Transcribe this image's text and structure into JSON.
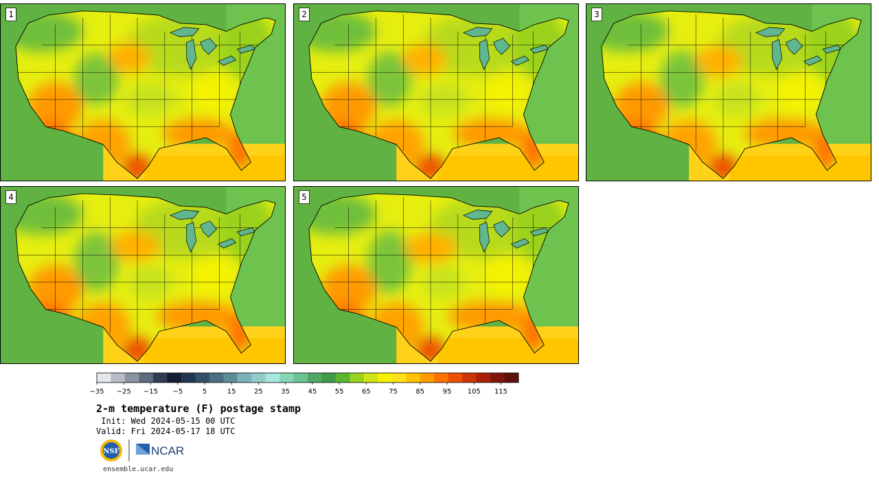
{
  "panels": [
    {
      "label": "1",
      "variant": 1
    },
    {
      "label": "2",
      "variant": 2
    },
    {
      "label": "3",
      "variant": 3
    },
    {
      "label": "4",
      "variant": 4
    },
    {
      "label": "5",
      "variant": 5
    }
  ],
  "colorbar": {
    "tick_labels": [
      "−35",
      "−25",
      "−15",
      "−5",
      "5",
      "15",
      "25",
      "35",
      "45",
      "55",
      "65",
      "75",
      "85",
      "95",
      "105",
      "115"
    ],
    "colors": [
      "#e3e6ea",
      "#b7bcc5",
      "#8a93a1",
      "#5f6b7e",
      "#2f3d57",
      "#141d33",
      "#213652",
      "#355069",
      "#4b6f82",
      "#5e8c99",
      "#79b3b9",
      "#92ccc8",
      "#a6e8df",
      "#88d6b6",
      "#6bc493",
      "#52a866",
      "#3f9a48",
      "#5ab530",
      "#9ad21f",
      "#d0e516",
      "#f4f200",
      "#ffe11a",
      "#ffc200",
      "#ff9a00",
      "#ff7300",
      "#ec5104",
      "#cc3505",
      "#a82008",
      "#82160b",
      "#5c130c"
    ]
  },
  "title": "2-m temperature (F) postage stamp",
  "init": " Init: Wed 2024-05-15 00 UTC",
  "valid": "Valid: Fri 2024-05-17 18 UTC",
  "logos": {
    "nsf_text": "NSF",
    "ncar_text": "NCAR"
  },
  "website": "ensemble.ucar.edu"
}
